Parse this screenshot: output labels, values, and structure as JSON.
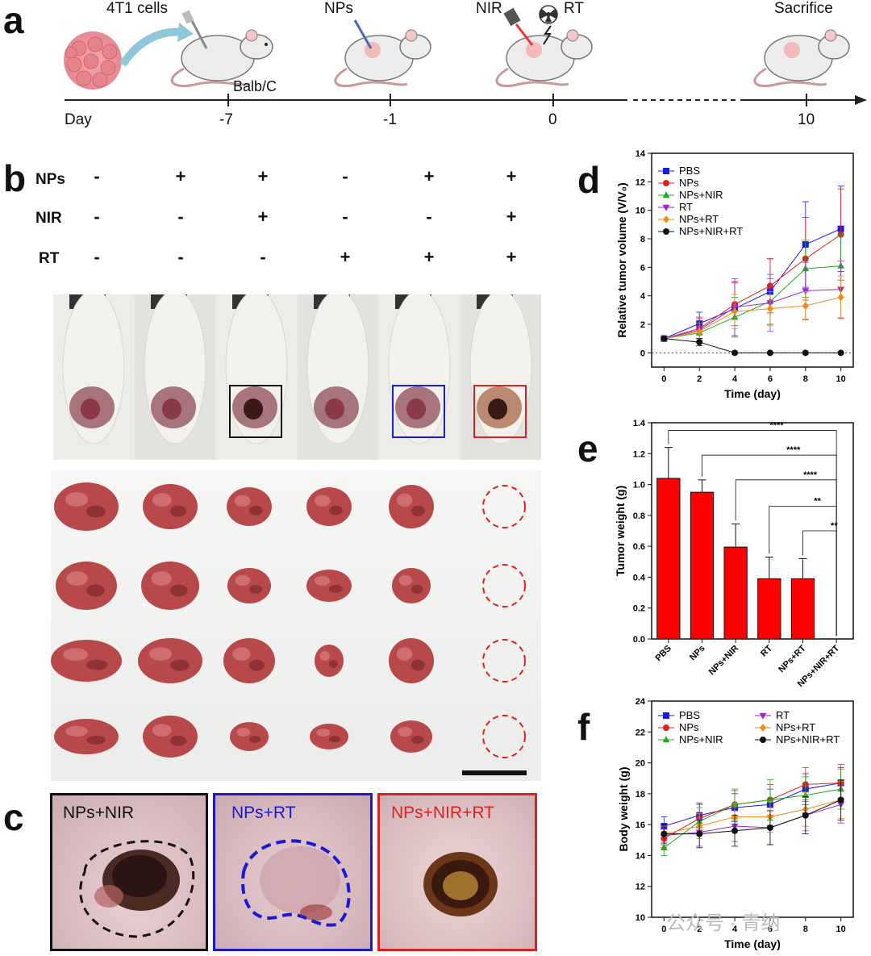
{
  "panel_a": {
    "letter": "a",
    "labels": {
      "cells": "4T1 cells",
      "strain": "Balb/C",
      "nps": "NPs",
      "nir": "NIR",
      "rt": "RT",
      "sacrifice": "Sacrifice",
      "day": "Day"
    },
    "timeline_days": [
      "-7",
      "-1",
      "0",
      "10"
    ],
    "icons": [
      "cell-cluster-icon",
      "syringe-icon",
      "mouse-icon",
      "laser-icon",
      "radiation-icon"
    ]
  },
  "panel_b": {
    "letter": "b",
    "rows": [
      {
        "label": "NPs",
        "signs": [
          "-",
          "+",
          "+",
          "-",
          "+",
          "+"
        ]
      },
      {
        "label": "NIR",
        "signs": [
          "-",
          "-",
          "+",
          "-",
          "-",
          "+"
        ]
      },
      {
        "label": "RT",
        "signs": [
          "-",
          "-",
          "-",
          "+",
          "+",
          "+"
        ]
      }
    ],
    "box_colors": {
      "nps_nir": "#111111",
      "nps_rt": "#1a1ad6",
      "nps_nir_rt": "#e02020"
    }
  },
  "panel_c": {
    "letter": "c",
    "labels": [
      "NPs+NIR",
      "NPs+RT",
      "NPs+NIR+RT"
    ],
    "colors": [
      "#111111",
      "#1a1ad6",
      "#e02020"
    ]
  },
  "chart_data": [
    {
      "panel": "d",
      "type": "line",
      "xlabel": "Time (day)",
      "ylabel": "Relative tumor volume (V/V₀)",
      "xlim": [
        -0.7,
        10.7
      ],
      "ylim": [
        -1,
        14
      ],
      "xticks": [
        0,
        2,
        4,
        6,
        8,
        10
      ],
      "yticks": [
        0,
        2,
        4,
        6,
        8,
        10,
        12,
        14
      ],
      "legend_position": "top-left",
      "x": [
        0,
        2,
        4,
        6,
        8,
        10
      ],
      "series": [
        {
          "name": "PBS",
          "color": "#1a1af0",
          "marker": "square",
          "values": [
            1.0,
            2.05,
            3.1,
            4.3,
            7.6,
            8.7
          ],
          "err": [
            0.1,
            0.8,
            1.9,
            2.3,
            3.0,
            3.0
          ]
        },
        {
          "name": "NPs",
          "color": "#e02020",
          "marker": "circle",
          "values": [
            1.0,
            1.7,
            3.4,
            4.7,
            6.6,
            8.3
          ],
          "err": [
            0.1,
            0.7,
            1.5,
            1.9,
            2.9,
            3.2
          ]
        },
        {
          "name": "NPs+NIR",
          "color": "#1faa1f",
          "marker": "triangle",
          "values": [
            1.0,
            1.4,
            2.5,
            3.6,
            5.9,
            6.1
          ],
          "err": [
            0.1,
            0.5,
            1.4,
            1.6,
            2.0,
            2.2
          ]
        },
        {
          "name": "RT",
          "color": "#9a2ad0",
          "marker": "triangle-down",
          "values": [
            1.0,
            1.6,
            3.2,
            3.5,
            4.35,
            4.45
          ],
          "err": [
            0.1,
            0.9,
            2.0,
            2.0,
            2.0,
            2.0
          ]
        },
        {
          "name": "NPs+RT",
          "color": "#f08a10",
          "marker": "diamond",
          "values": [
            1.0,
            1.5,
            2.9,
            3.1,
            3.3,
            3.9
          ],
          "err": [
            0.1,
            0.6,
            1.2,
            1.2,
            1.0,
            1.5
          ]
        },
        {
          "name": "NPs+NIR+RT",
          "color": "#111111",
          "marker": "circle",
          "values": [
            1.0,
            0.75,
            0.0,
            0.0,
            0.0,
            0.0
          ],
          "err": [
            0.05,
            0.25,
            0,
            0,
            0,
            0
          ]
        }
      ]
    },
    {
      "panel": "e",
      "type": "bar",
      "ylabel": "Tumor weight (g)",
      "ylim": [
        0,
        1.4
      ],
      "yticks": [
        0.0,
        0.2,
        0.4,
        0.6,
        0.8,
        1.0,
        1.2,
        1.4
      ],
      "categories": [
        "PBS",
        "NPs",
        "NPs+NIR",
        "RT",
        "NPs+RT",
        "NPs+NIR+RT"
      ],
      "values": [
        1.04,
        0.95,
        0.595,
        0.39,
        0.39,
        0.0
      ],
      "err": [
        0.2,
        0.08,
        0.15,
        0.14,
        0.13,
        0.0
      ],
      "bar_color": "#ff0000",
      "significance": [
        {
          "from": "PBS",
          "to": "NPs+NIR+RT",
          "label": "****"
        },
        {
          "from": "NPs",
          "to": "NPs+NIR+RT",
          "label": "****"
        },
        {
          "from": "NPs+NIR",
          "to": "NPs+NIR+RT",
          "label": "****"
        },
        {
          "from": "RT",
          "to": "NPs+NIR+RT",
          "label": "**"
        },
        {
          "from": "NPs+RT",
          "to": "NPs+NIR+RT",
          "label": "**"
        }
      ]
    },
    {
      "panel": "f",
      "type": "line",
      "xlabel": "Time (day)",
      "ylabel": "Body weight (g)",
      "xlim": [
        -0.7,
        10.7
      ],
      "ylim": [
        10,
        24
      ],
      "xticks": [
        0,
        2,
        4,
        6,
        8,
        10
      ],
      "yticks": [
        10,
        12,
        14,
        16,
        18,
        20,
        22,
        24
      ],
      "legend_position": "top",
      "x": [
        0,
        2,
        4,
        6,
        8,
        10
      ],
      "series": [
        {
          "name": "PBS",
          "color": "#1a1af0",
          "marker": "square",
          "values": [
            15.9,
            16.6,
            17.1,
            17.3,
            18.3,
            18.7
          ],
          "err": [
            0.6,
            0.8,
            0.9,
            1.0,
            1.0,
            1.0
          ]
        },
        {
          "name": "NPs",
          "color": "#e02020",
          "marker": "circle",
          "values": [
            15.1,
            16.4,
            17.3,
            17.6,
            18.6,
            18.7
          ],
          "err": [
            0.6,
            0.9,
            0.9,
            1.0,
            1.1,
            1.2
          ]
        },
        {
          "name": "NPs+NIR",
          "color": "#1faa1f",
          "marker": "triangle",
          "values": [
            14.5,
            16.2,
            17.3,
            17.6,
            17.9,
            18.3
          ],
          "err": [
            0.5,
            0.9,
            1.0,
            1.3,
            1.2,
            1.3
          ]
        },
        {
          "name": "RT",
          "color": "#9a2ad0",
          "marker": "triangle-down",
          "values": [
            15.3,
            15.5,
            15.9,
            15.8,
            16.6,
            17.3
          ],
          "err": [
            0.6,
            0.9,
            1.0,
            1.1,
            1.0,
            1.2
          ]
        },
        {
          "name": "NPs+RT",
          "color": "#f08a10",
          "marker": "diamond",
          "values": [
            15.4,
            15.9,
            16.5,
            16.5,
            17.0,
            17.6
          ],
          "err": [
            0.5,
            0.8,
            0.9,
            1.0,
            1.1,
            1.2
          ]
        },
        {
          "name": "NPs+NIR+RT",
          "color": "#111111",
          "marker": "circle",
          "values": [
            15.4,
            15.4,
            15.6,
            15.8,
            16.6,
            17.6
          ],
          "err": [
            0.6,
            0.9,
            1.0,
            1.1,
            1.2,
            1.3
          ]
        }
      ]
    }
  ],
  "watermark": "公众号 · 青纳"
}
